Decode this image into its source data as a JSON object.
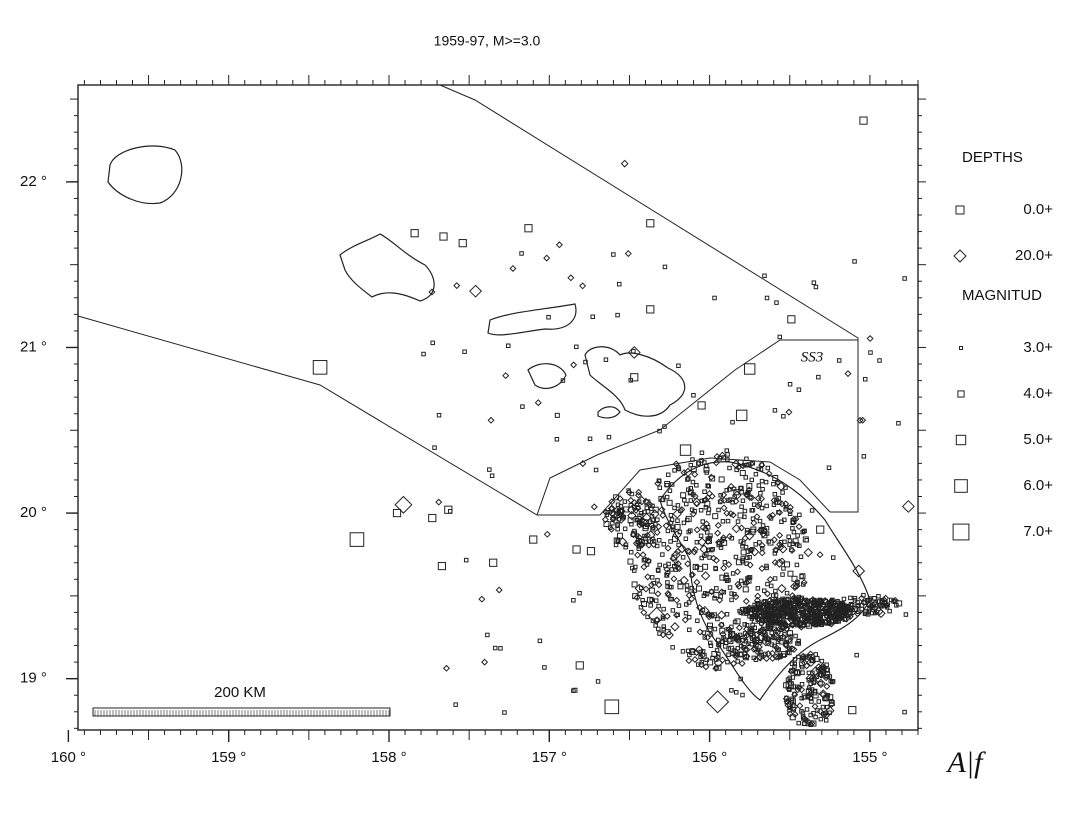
{
  "map": {
    "title": "1959-97,  M>=3.0",
    "xlim": [
      159.94,
      154.7
    ],
    "ylim": [
      18.69,
      22.585
    ],
    "xticks": [
      {
        "value": 160,
        "label": "160 °"
      },
      {
        "value": 159,
        "label": "159 °"
      },
      {
        "value": 158,
        "label": "158 °"
      },
      {
        "value": 157,
        "label": "157 °"
      },
      {
        "value": 156,
        "label": "156 °"
      },
      {
        "value": 155,
        "label": "155 °"
      }
    ],
    "yticks": [
      {
        "value": 22,
        "label": "22 °"
      },
      {
        "value": 21,
        "label": "21 °"
      },
      {
        "value": 20,
        "label": "20 °"
      },
      {
        "value": 19,
        "label": "19 °"
      }
    ],
    "legend": {
      "depths_title": "DEPTHS",
      "depths": [
        "0.0+",
        "20.0+"
      ],
      "magnitude_title": "MAGNITUD",
      "magnitudes": [
        {
          "value": 3,
          "label": "3.0+"
        },
        {
          "value": 4,
          "label": "4.0+"
        },
        {
          "value": 5,
          "label": "5.0+"
        },
        {
          "value": 6,
          "label": "6.0+"
        },
        {
          "value": 7,
          "label": "7.0+"
        }
      ]
    },
    "scale_label": "200 KM",
    "zone_label": "SS3",
    "handwritten_note": "A|f",
    "events": [
      {
        "lon": 158.43,
        "lat": 20.88,
        "mag": 6,
        "depth": 0
      },
      {
        "lon": 158.2,
        "lat": 19.84,
        "mag": 6,
        "depth": 0
      },
      {
        "lon": 156.61,
        "lat": 18.83,
        "mag": 6,
        "depth": 0
      },
      {
        "lon": 155.75,
        "lat": 20.87,
        "mag": 5,
        "depth": 0
      },
      {
        "lon": 155.95,
        "lat": 18.86,
        "mag": 6,
        "depth": 20
      },
      {
        "lon": 157.91,
        "lat": 20.05,
        "mag": 5,
        "depth": 20
      },
      {
        "lon": 157.46,
        "lat": 21.34,
        "mag": 4,
        "depth": 20
      },
      {
        "lon": 156.47,
        "lat": 20.97,
        "mag": 4,
        "depth": 20
      },
      {
        "lon": 157.84,
        "lat": 21.69,
        "mag": 4,
        "depth": 0
      },
      {
        "lon": 157.66,
        "lat": 21.67,
        "mag": 4,
        "depth": 0
      },
      {
        "lon": 157.54,
        "lat": 21.63,
        "mag": 4,
        "depth": 0
      },
      {
        "lon": 157.13,
        "lat": 21.72,
        "mag": 4,
        "depth": 0
      },
      {
        "lon": 156.37,
        "lat": 21.75,
        "mag": 4,
        "depth": 0
      },
      {
        "lon": 156.37,
        "lat": 21.23,
        "mag": 4,
        "depth": 0
      },
      {
        "lon": 155.49,
        "lat": 21.17,
        "mag": 4,
        "depth": 0
      },
      {
        "lon": 155.04,
        "lat": 22.37,
        "mag": 4,
        "depth": 0
      },
      {
        "lon": 156.53,
        "lat": 22.11,
        "mag": 3,
        "depth": 20
      },
      {
        "lon": 154.76,
        "lat": 20.04,
        "mag": 4,
        "depth": 20
      },
      {
        "lon": 155.07,
        "lat": 19.65,
        "mag": 4,
        "depth": 20
      },
      {
        "lon": 157.1,
        "lat": 19.84,
        "mag": 4,
        "depth": 0
      },
      {
        "lon": 157.35,
        "lat": 19.7,
        "mag": 4,
        "depth": 0
      },
      {
        "lon": 157.67,
        "lat": 19.68,
        "mag": 4,
        "depth": 0
      },
      {
        "lon": 157.73,
        "lat": 19.97,
        "mag": 4,
        "depth": 0
      },
      {
        "lon": 157.63,
        "lat": 20.02,
        "mag": 4,
        "depth": 0
      },
      {
        "lon": 157.95,
        "lat": 20.0,
        "mag": 4,
        "depth": 0
      },
      {
        "lon": 156.83,
        "lat": 19.78,
        "mag": 4,
        "depth": 0
      },
      {
        "lon": 156.74,
        "lat": 19.77,
        "mag": 4,
        "depth": 0
      },
      {
        "lon": 155.8,
        "lat": 20.59,
        "mag": 5,
        "depth": 0
      },
      {
        "lon": 156.15,
        "lat": 20.38,
        "mag": 5,
        "depth": 0
      },
      {
        "lon": 156.05,
        "lat": 20.65,
        "mag": 4,
        "depth": 0
      },
      {
        "lon": 156.95,
        "lat": 20.59,
        "mag": 3,
        "depth": 0
      },
      {
        "lon": 156.47,
        "lat": 20.82,
        "mag": 4,
        "depth": 0
      },
      {
        "lon": 155.7,
        "lat": 19.25,
        "mag": 5,
        "depth": 0
      },
      {
        "lon": 156.81,
        "lat": 19.08,
        "mag": 4,
        "depth": 0
      },
      {
        "lon": 156.84,
        "lat": 18.93,
        "mag": 3,
        "depth": 0
      },
      {
        "lon": 155.11,
        "lat": 18.81,
        "mag": 4,
        "depth": 0
      },
      {
        "lon": 156.33,
        "lat": 19.38,
        "mag": 5,
        "depth": 20
      },
      {
        "lon": 155.5,
        "lat": 18.96,
        "mag": 4,
        "depth": 0
      },
      {
        "lon": 155.31,
        "lat": 19.9,
        "mag": 4,
        "depth": 0
      }
    ]
  }
}
